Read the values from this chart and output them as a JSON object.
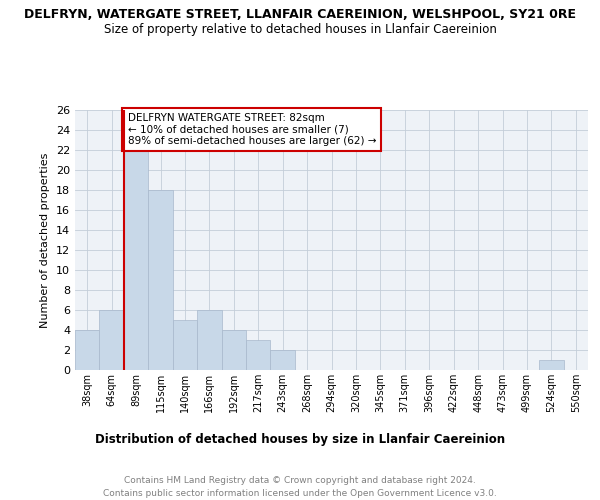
{
  "title": "DELFRYN, WATERGATE STREET, LLANFAIR CAEREINION, WELSHPOOL, SY21 0RE",
  "subtitle": "Size of property relative to detached houses in Llanfair Caereinion",
  "xlabel": "Distribution of detached houses by size in Llanfair Caereinion",
  "ylabel": "Number of detached properties",
  "categories": [
    "38sqm",
    "64sqm",
    "89sqm",
    "115sqm",
    "140sqm",
    "166sqm",
    "192sqm",
    "217sqm",
    "243sqm",
    "268sqm",
    "294sqm",
    "320sqm",
    "345sqm",
    "371sqm",
    "396sqm",
    "422sqm",
    "448sqm",
    "473sqm",
    "499sqm",
    "524sqm",
    "550sqm"
  ],
  "values": [
    4,
    6,
    22,
    18,
    5,
    6,
    4,
    3,
    2,
    0,
    0,
    0,
    0,
    0,
    0,
    0,
    0,
    0,
    0,
    1,
    0
  ],
  "bar_color": "#c8d8e8",
  "bar_edge_color": "#a8b8cc",
  "vline_color": "#cc0000",
  "annotation_title": "DELFRYN WATERGATE STREET: 82sqm",
  "annotation_line1": "← 10% of detached houses are smaller (7)",
  "annotation_line2": "89% of semi-detached houses are larger (62) →",
  "annotation_box_color": "#ffffff",
  "annotation_box_edge_color": "#cc0000",
  "ylim": [
    0,
    26
  ],
  "yticks": [
    0,
    2,
    4,
    6,
    8,
    10,
    12,
    14,
    16,
    18,
    20,
    22,
    24,
    26
  ],
  "footer_line1": "Contains HM Land Registry data © Crown copyright and database right 2024.",
  "footer_line2": "Contains public sector information licensed under the Open Government Licence v3.0.",
  "bg_color": "#eef2f7",
  "grid_color": "#c4cdd8"
}
